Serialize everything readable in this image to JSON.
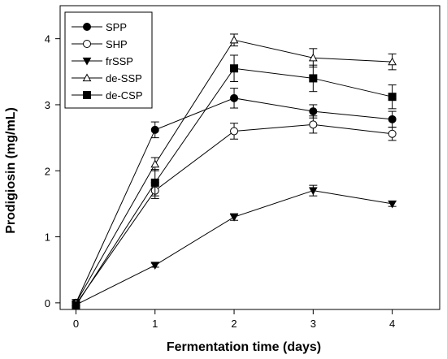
{
  "chart_data": {
    "type": "line",
    "xlabel": "Fermentation time (days)",
    "ylabel": "Prodigiosin (mg/mL)",
    "x": [
      0,
      1,
      2,
      3,
      4
    ],
    "xlim": [
      -0.2,
      4.6
    ],
    "ylim": [
      -0.1,
      4.5
    ],
    "xticks": [
      "0",
      "1",
      "2",
      "3",
      "4"
    ],
    "yticks": [
      "0",
      "1",
      "2",
      "3",
      "4"
    ],
    "grid": false,
    "legend_position": "top-left",
    "series": [
      {
        "name": "SPP",
        "marker": "circle-filled",
        "values": [
          0.0,
          2.62,
          3.1,
          2.9,
          2.78
        ],
        "errors": [
          0.05,
          0.12,
          0.15,
          0.1,
          0.12
        ]
      },
      {
        "name": "SHP",
        "marker": "circle-open",
        "values": [
          -0.02,
          1.7,
          2.6,
          2.7,
          2.56
        ],
        "errors": [
          0.05,
          0.12,
          0.12,
          0.13,
          0.1
        ]
      },
      {
        "name": "frSSP",
        "marker": "triangle-down-filled",
        "values": [
          -0.03,
          0.57,
          1.3,
          1.7,
          1.5
        ],
        "errors": [
          0.03,
          0.03,
          0.05,
          0.08,
          0.04
        ]
      },
      {
        "name": "de-SSP",
        "marker": "triangle-up-open",
        "values": [
          0.0,
          2.1,
          3.98,
          3.71,
          3.65
        ],
        "errors": [
          0.05,
          0.1,
          0.09,
          0.14,
          0.12
        ]
      },
      {
        "name": "de-CSP",
        "marker": "square-filled",
        "values": [
          -0.04,
          1.82,
          3.55,
          3.4,
          3.12
        ],
        "errors": [
          0.04,
          0.2,
          0.2,
          0.2,
          0.18
        ]
      }
    ]
  }
}
